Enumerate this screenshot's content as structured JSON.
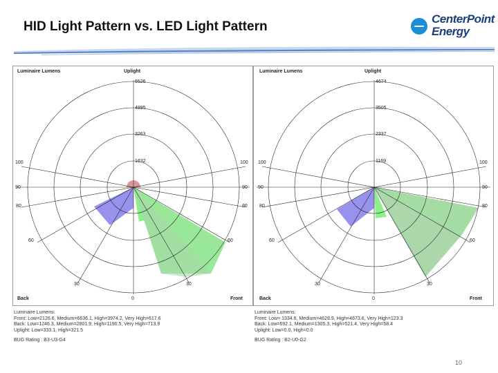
{
  "slide": {
    "title": "HID Light Pattern vs. LED Light Pattern",
    "page_number": "10"
  },
  "logo": {
    "line1": "CenterPoint",
    "line2": "Energy",
    "accent_color": "#1a8fd6",
    "text_color": "#1b3f7a"
  },
  "diagrams": [
    {
      "id": "hid",
      "header_left": "Luminaire Lumens",
      "header_right": "Uplight",
      "ring_labels": [
        "1632",
        "3263",
        "4895",
        "6526"
      ],
      "angle_labels": {
        "left_100": "100",
        "left_90": "90",
        "left_80": "80",
        "left_60": "60",
        "left_30": "30",
        "right_100": "100",
        "right_90": "90",
        "right_80": "80",
        "right_60": "60",
        "right_30": "30",
        "bottom": "0"
      },
      "corner_left": "Back",
      "corner_right": "Front",
      "info_title": "Luminaire Lumens:",
      "info_lines": [
        "Front: Low=2126.6, Medium=6636.1, High=3974.2, Very High=617.6",
        "Back: Low=1246.3, Medium=2801.9, High=1190.5, Very High=713.9",
        "Uplight: Low=333.1, High=321.5"
      ],
      "bug_rating": "BUG Rating : B3-U3-G4",
      "zones": {
        "uplight_color": "#d98c8c",
        "back_color": "#8c86ec",
        "front_low_color": "#7ef07e",
        "front_color": "#8ee48e",
        "front_very_high_color": "#a8d8a8"
      }
    },
    {
      "id": "led",
      "header_left": "Luminaire Lumens",
      "header_right": "Uplight",
      "ring_labels": [
        "1169",
        "2337",
        "3505",
        "4674"
      ],
      "angle_labels": {
        "left_100": "100",
        "left_90": "90",
        "left_80": "80",
        "left_60": "60",
        "left_30": "30",
        "right_100": "100",
        "right_90": "90",
        "right_80": "80",
        "right_60": "60",
        "right_30": "30",
        "bottom": "0"
      },
      "corner_left": "Back",
      "corner_right": "Front",
      "info_title": "Luminaire Lumens:",
      "info_lines": [
        "Front: Low= 1334.6, Medium=4628.9, High=4673.6, Very High=123.3",
        "Back: Low=692.1, Medium=1305.3, High=521.4, Very High=58.4",
        "Uplight: Low=0.0, High=0.0"
      ],
      "bug_rating": "BUG Rating : B2-U0-G2",
      "zones": {
        "back_color": "#8c86ec",
        "front_low_color": "#7ef07e",
        "front_color": "#9ad89a",
        "front_very_high_color": "#b0d4b0"
      }
    }
  ]
}
